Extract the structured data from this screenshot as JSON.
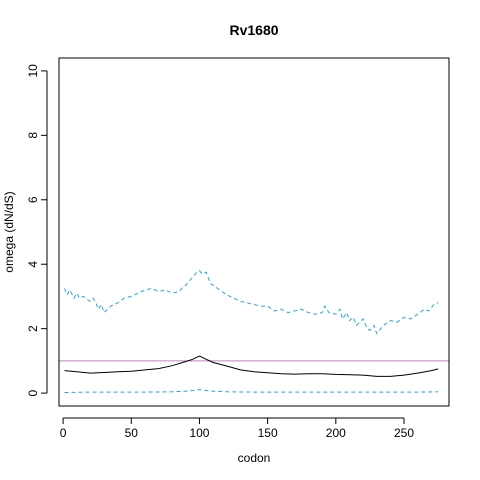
{
  "chart_data": {
    "type": "line",
    "title": "Rv1680",
    "xlabel": "codon",
    "ylabel": "omega (dN/dS)",
    "xlim": [
      -3,
      283
    ],
    "ylim": [
      -0.4,
      10.4
    ],
    "x_ticks": [
      0,
      50,
      100,
      150,
      200,
      250
    ],
    "y_ticks": [
      0,
      2,
      4,
      6,
      8,
      10
    ],
    "grid": false,
    "legend": "none",
    "reference_line": {
      "y": 1,
      "color": "#c080c0"
    },
    "series": [
      {
        "style": "solid",
        "color": "#000000",
        "x": [
          1,
          10,
          20,
          30,
          40,
          50,
          60,
          70,
          80,
          90,
          95,
          100,
          105,
          110,
          120,
          130,
          140,
          150,
          160,
          170,
          180,
          190,
          200,
          210,
          220,
          230,
          240,
          250,
          260,
          270,
          275
        ],
        "y": [
          0.7,
          0.66,
          0.62,
          0.64,
          0.66,
          0.68,
          0.72,
          0.76,
          0.85,
          0.98,
          1.05,
          1.15,
          1.05,
          0.95,
          0.84,
          0.72,
          0.66,
          0.63,
          0.6,
          0.59,
          0.6,
          0.6,
          0.58,
          0.57,
          0.56,
          0.52,
          0.52,
          0.56,
          0.62,
          0.7,
          0.75
        ]
      },
      {
        "style": "dashed",
        "color": "#29a6e0",
        "x": [
          1,
          20,
          40,
          60,
          80,
          90,
          95,
          100,
          105,
          110,
          120,
          140,
          160,
          180,
          200,
          220,
          240,
          260,
          275
        ],
        "y": [
          0.02,
          0.03,
          0.03,
          0.03,
          0.04,
          0.06,
          0.08,
          0.11,
          0.08,
          0.06,
          0.04,
          0.03,
          0.03,
          0.03,
          0.03,
          0.03,
          0.03,
          0.03,
          0.04
        ]
      },
      {
        "style": "dashed",
        "color": "#29a6e0",
        "x": [
          1,
          3,
          5,
          8,
          10,
          12,
          15,
          18,
          20,
          22,
          24,
          26,
          28,
          30,
          35,
          40,
          45,
          50,
          55,
          60,
          65,
          70,
          75,
          80,
          85,
          88,
          90,
          92,
          94,
          96,
          98,
          100,
          102,
          105,
          108,
          110,
          115,
          120,
          125,
          130,
          135,
          140,
          145,
          150,
          155,
          160,
          165,
          170,
          175,
          180,
          185,
          190,
          192,
          195,
          200,
          203,
          205,
          208,
          210,
          213,
          215,
          220,
          223,
          225,
          228,
          230,
          235,
          240,
          245,
          250,
          255,
          260,
          265,
          268,
          272,
          275
        ],
        "y": [
          3.25,
          3.05,
          3.2,
          2.95,
          3.1,
          2.95,
          3.0,
          2.9,
          2.85,
          2.95,
          2.8,
          2.6,
          2.75,
          2.5,
          2.7,
          2.8,
          2.95,
          3.0,
          3.1,
          3.2,
          3.25,
          3.15,
          3.2,
          3.1,
          3.15,
          3.3,
          3.35,
          3.45,
          3.55,
          3.65,
          3.75,
          3.8,
          3.7,
          3.75,
          3.4,
          3.35,
          3.2,
          3.05,
          2.95,
          2.85,
          2.8,
          2.75,
          2.7,
          2.7,
          2.55,
          2.6,
          2.5,
          2.55,
          2.6,
          2.5,
          2.45,
          2.5,
          2.7,
          2.5,
          2.45,
          2.6,
          2.3,
          2.5,
          2.25,
          2.35,
          2.1,
          2.3,
          2.0,
          1.95,
          2.1,
          1.85,
          2.1,
          2.25,
          2.2,
          2.35,
          2.3,
          2.45,
          2.6,
          2.55,
          2.75,
          2.8
        ]
      }
    ]
  }
}
